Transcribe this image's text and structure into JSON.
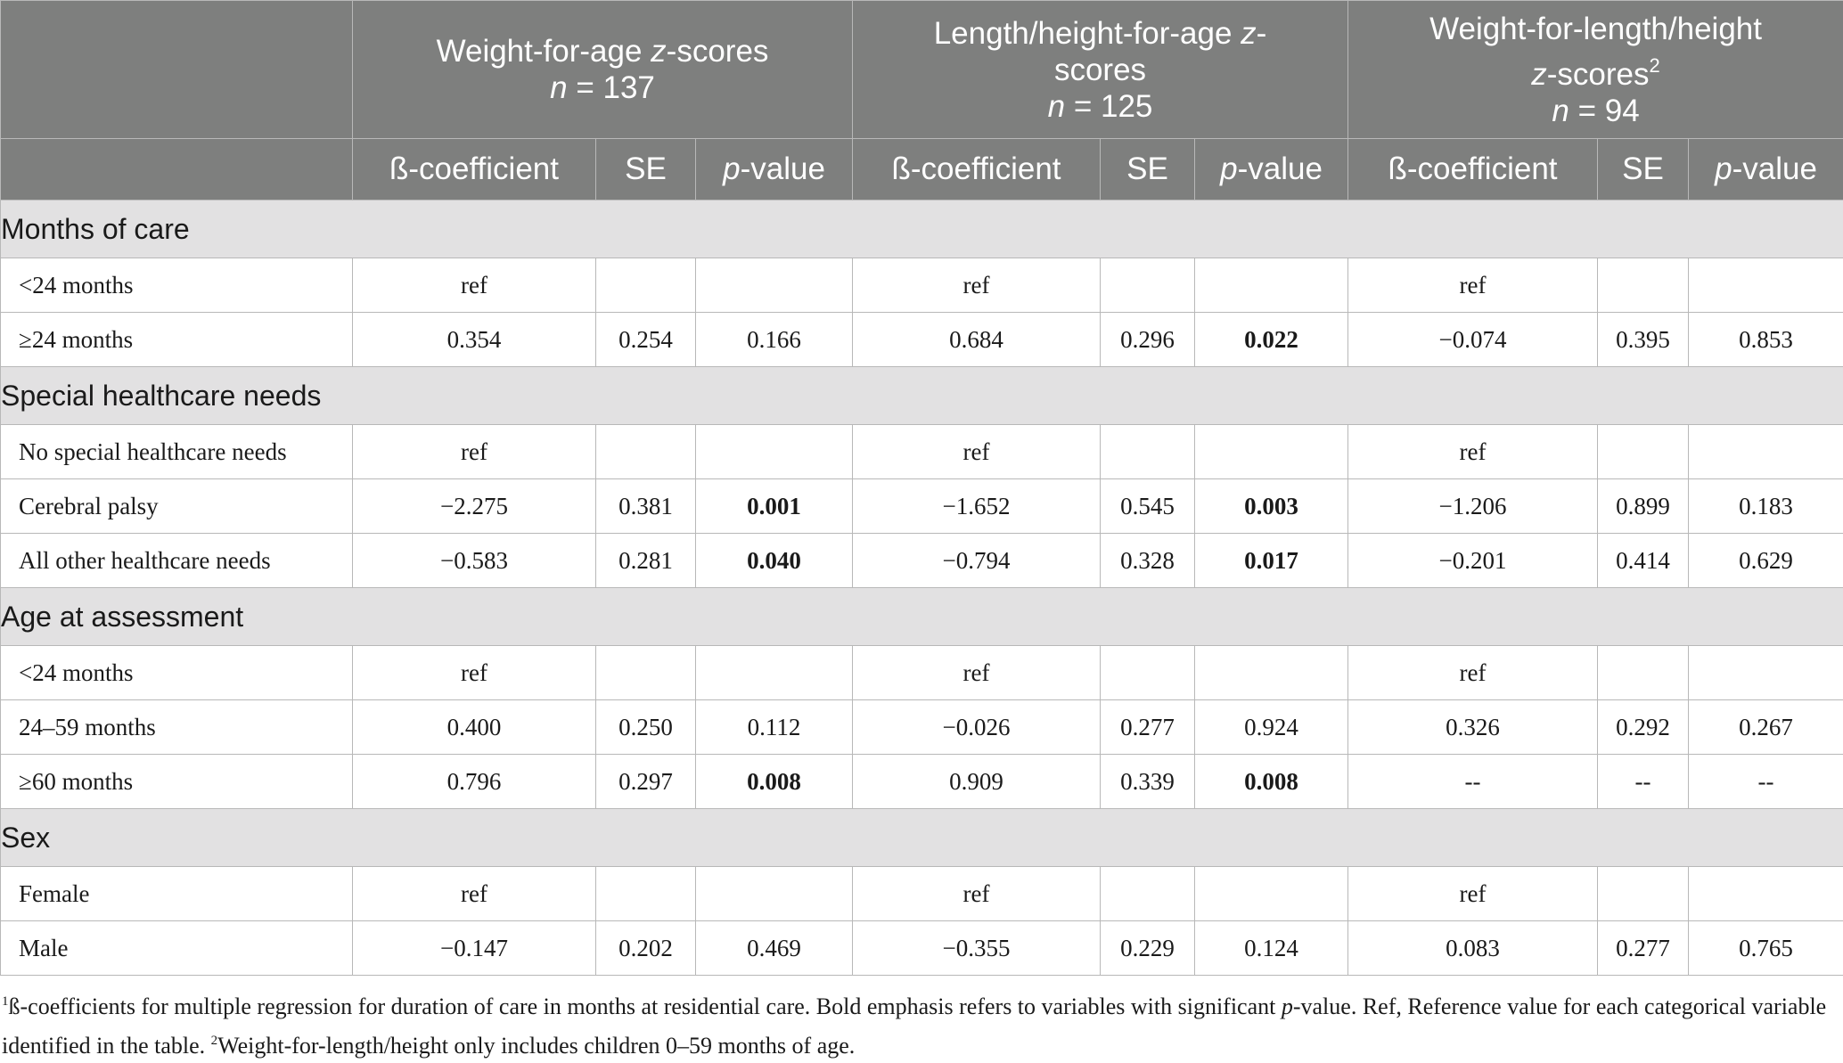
{
  "table": {
    "groups": [
      {
        "title": "Weight-for-age",
        "z": "z",
        "title_rest": "-scores",
        "n_label": "n",
        "n_value": "= 137"
      },
      {
        "title": "Length/height-for-age",
        "z": "z",
        "title_rest": "-scores",
        "n_label": "n",
        "n_value": "= 125"
      },
      {
        "title": "Weight-for-length/height",
        "z": "z",
        "title_rest": "-scores",
        "sup": "2",
        "n_label": "n",
        "n_value": "= 94"
      }
    ],
    "subheaders": {
      "beta": "ß-coefficient",
      "se": "SE",
      "p_italic": "p",
      "p_rest": "-value"
    },
    "sections": [
      {
        "title": "Months of care",
        "rows": [
          {
            "label": "<24 months",
            "cells": [
              "ref",
              "",
              "",
              "ref",
              "",
              "",
              "ref",
              "",
              ""
            ],
            "bold": []
          },
          {
            "label": "≥24 months",
            "cells": [
              "0.354",
              "0.254",
              "0.166",
              "0.684",
              "0.296",
              "0.022",
              "−0.074",
              "0.395",
              "0.853"
            ],
            "bold": [
              5
            ]
          }
        ]
      },
      {
        "title": "Special healthcare needs",
        "rows": [
          {
            "label": "No special healthcare needs",
            "cells": [
              "ref",
              "",
              "",
              "ref",
              "",
              "",
              "ref",
              "",
              ""
            ],
            "bold": []
          },
          {
            "label": "Cerebral palsy",
            "cells": [
              "−2.275",
              "0.381",
              "0.001",
              "−1.652",
              "0.545",
              "0.003",
              "−1.206",
              "0.899",
              "0.183"
            ],
            "bold": [
              2,
              5
            ]
          },
          {
            "label": "All other healthcare needs",
            "cells": [
              "−0.583",
              "0.281",
              "0.040",
              "−0.794",
              "0.328",
              "0.017",
              "−0.201",
              "0.414",
              "0.629"
            ],
            "bold": [
              2,
              5
            ]
          }
        ]
      },
      {
        "title": "Age at assessment",
        "rows": [
          {
            "label": "<24 months",
            "cells": [
              "ref",
              "",
              "",
              "ref",
              "",
              "",
              "ref",
              "",
              ""
            ],
            "bold": []
          },
          {
            "label": "24–59 months",
            "cells": [
              "0.400",
              "0.250",
              "0.112",
              "−0.026",
              "0.277",
              "0.924",
              "0.326",
              "0.292",
              "0.267"
            ],
            "bold": []
          },
          {
            "label": "≥60 months",
            "cells": [
              "0.796",
              "0.297",
              "0.008",
              "0.909",
              "0.339",
              "0.008",
              "--",
              "--",
              "--"
            ],
            "bold": [
              2,
              5
            ]
          }
        ]
      },
      {
        "title": "Sex",
        "rows": [
          {
            "label": "Female",
            "cells": [
              "ref",
              "",
              "",
              "ref",
              "",
              "",
              "ref",
              "",
              ""
            ],
            "bold": []
          },
          {
            "label": "Male",
            "cells": [
              "−0.147",
              "0.202",
              "0.469",
              "−0.355",
              "0.229",
              "0.124",
              "0.083",
              "0.277",
              "0.765"
            ],
            "bold": []
          }
        ]
      }
    ]
  },
  "footnote": {
    "sup1": "1",
    "part1": "ß-coefficients for multiple regression for duration of care in months at residential care. Bold emphasis refers to variables with significant ",
    "p_italic": "p",
    "part2": "-value. Ref, Reference value for each categorical variable identified in the table. ",
    "sup2": "2",
    "part3": "Weight-for-length/height only includes children 0–59 months of age."
  }
}
